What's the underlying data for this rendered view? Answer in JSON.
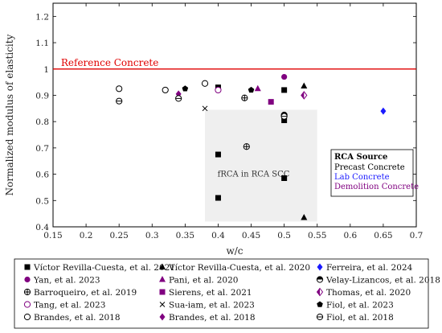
{
  "chart_data": {
    "type": "scatter",
    "xlabel": "w/c",
    "ylabel": "Normalized modulus of elasticity",
    "xlim": [
      0.15,
      0.7
    ],
    "ylim": [
      0.4,
      1.25
    ],
    "x_ticks": [
      0.15,
      0.2,
      0.25,
      0.3,
      0.35,
      0.4,
      0.45,
      0.5,
      0.55,
      0.6,
      0.65,
      0.7
    ],
    "x_tick_labels": [
      "0.15",
      "0.2",
      "0.25",
      "0.3",
      "0.35",
      "0.4",
      "0.45",
      "0.5",
      "0.55",
      "0.6",
      "0.65",
      "0.7"
    ],
    "y_ticks": [
      0.4,
      0.5,
      0.6,
      0.7,
      0.8,
      0.9,
      1.0,
      1.1,
      1.2
    ],
    "y_tick_labels": [
      "0.4",
      "0.5",
      "0.6",
      "0.7",
      "0.8",
      "0.9",
      "1",
      "1.1",
      "1.2"
    ],
    "grid": false,
    "reference_line": {
      "y": 1.0,
      "label": "Reference Concrete",
      "color": "#e00000"
    },
    "shaded_region": {
      "x": [
        0.38,
        0.55
      ],
      "y": [
        0.42,
        0.845
      ],
      "label": "fRCA in RCA SCC"
    },
    "rca_source_legend": {
      "title": "RCA Source",
      "items": [
        {
          "label": "Precast Concrete",
          "color": "#000000"
        },
        {
          "label": "Lab Concrete",
          "color": "#1a1aff"
        },
        {
          "label": "Demolition Concrete",
          "color": "#800080"
        }
      ]
    },
    "series": [
      {
        "name": "Víctor Revilla-Cuesta, et al. 2021",
        "marker": "square",
        "color": "#000000",
        "points": [
          [
            0.4,
            0.93
          ],
          [
            0.4,
            0.675
          ],
          [
            0.4,
            0.51
          ],
          [
            0.5,
            0.92
          ],
          [
            0.5,
            0.805
          ],
          [
            0.5,
            0.585
          ]
        ]
      },
      {
        "name": "Víctor Revilla-Cuesta, et al. 2020",
        "marker": "triangle",
        "color": "#000000",
        "points": [
          [
            0.53,
            0.935
          ],
          [
            0.53,
            0.435
          ]
        ]
      },
      {
        "name": "Ferreira, et al. 2024",
        "marker": "diamond",
        "color": "#1a1aff",
        "points": [
          [
            0.65,
            0.84
          ]
        ]
      },
      {
        "name": "Yan, et al. 2023",
        "marker": "circle",
        "color": "#800080",
        "points": [
          [
            0.5,
            0.97
          ]
        ]
      },
      {
        "name": "Pani, et al. 2020",
        "marker": "triangle",
        "color": "#800080",
        "points": [
          [
            0.46,
            0.925
          ]
        ]
      },
      {
        "name": "Velay-Lizancos, et al. 2018",
        "marker": "half-circle",
        "color": "#000000",
        "points": [
          [
            0.5,
            0.825
          ]
        ]
      },
      {
        "name": "Barroqueiro, et al. 2019",
        "marker": "oplus",
        "color": "#000000",
        "points": [
          [
            0.44,
            0.89
          ],
          [
            0.443,
            0.705
          ]
        ]
      },
      {
        "name": "Sierens, et al. 2021",
        "marker": "square",
        "color": "#800080",
        "points": [
          [
            0.48,
            0.875
          ]
        ]
      },
      {
        "name": "Thomas, et al. 2020",
        "marker": "half-diamond",
        "color": "#800080",
        "points": [
          [
            0.53,
            0.9
          ]
        ]
      },
      {
        "name": "Tang, et al. 2023",
        "marker": "open-circle",
        "color": "#800080",
        "points": [
          [
            0.4,
            0.92
          ]
        ]
      },
      {
        "name": "Sua-iam, et al. 2023",
        "marker": "cross",
        "color": "#000000",
        "points": [
          [
            0.38,
            0.85
          ]
        ]
      },
      {
        "name": "Fiol, et al. 2023",
        "marker": "pentagon",
        "color": "#000000",
        "points": [
          [
            0.35,
            0.925
          ],
          [
            0.45,
            0.92
          ]
        ]
      },
      {
        "name": "Brandes, et al. 2018",
        "marker": "open-circle",
        "color": "#000000",
        "points": [
          [
            0.25,
            0.925
          ],
          [
            0.32,
            0.92
          ],
          [
            0.38,
            0.945
          ]
        ]
      },
      {
        "name": "Brandes, et al. 2018",
        "marker": "diamond",
        "color": "#800080",
        "points": [
          [
            0.34,
            0.905
          ]
        ]
      },
      {
        "name": "Fiol, et al. 2018",
        "marker": "ominus",
        "color": "#000000",
        "points": [
          [
            0.25,
            0.878
          ],
          [
            0.34,
            0.888
          ],
          [
            0.5,
            0.82
          ]
        ]
      }
    ]
  }
}
